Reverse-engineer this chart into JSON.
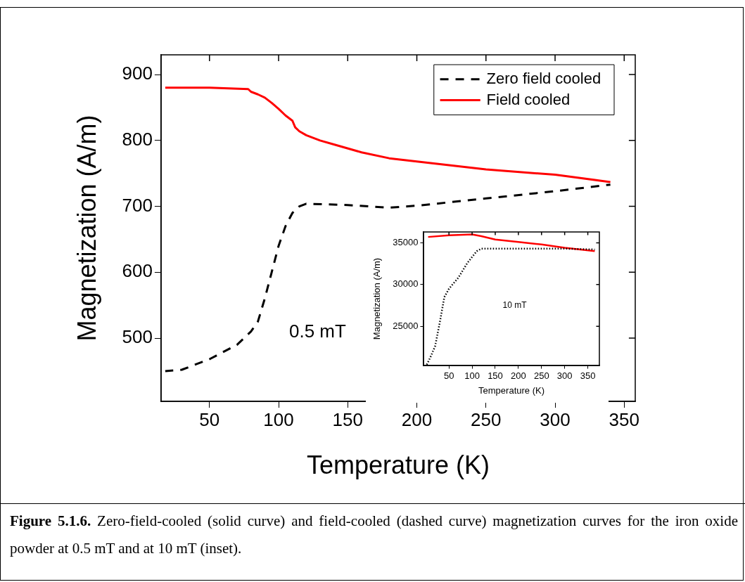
{
  "chart_data": [
    {
      "type": "line",
      "xlabel": "Temperature (K)",
      "ylabel": "Magnetization (A/m)",
      "xlim": [
        15,
        358
      ],
      "ylim": [
        404,
        930
      ],
      "xticks": [
        50,
        100,
        150,
        200,
        250,
        300,
        350
      ],
      "yticks": [
        500,
        600,
        700,
        800,
        900
      ],
      "legend": "top right",
      "series": [
        {
          "name": "Zero field cooled",
          "color": "#000000",
          "line_style": "dashed",
          "x": [
            18,
            30,
            50,
            70,
            80,
            85,
            90,
            95,
            100,
            105,
            110,
            115,
            120,
            150,
            180,
            200,
            250,
            300,
            340
          ],
          "values": [
            450,
            452,
            468,
            490,
            510,
            525,
            560,
            600,
            640,
            670,
            690,
            700,
            704,
            702,
            698,
            701,
            712,
            723,
            733
          ]
        },
        {
          "name": "Field cooled",
          "color": "#ff0000",
          "line_style": "solid",
          "x": [
            18,
            50,
            78,
            80,
            85,
            90,
            95,
            100,
            105,
            110,
            112,
            115,
            120,
            130,
            140,
            160,
            180,
            200,
            250,
            300,
            340
          ],
          "values": [
            880,
            880,
            878,
            874,
            870,
            865,
            857,
            848,
            838,
            830,
            820,
            814,
            808,
            800,
            794,
            782,
            773,
            768,
            756,
            748,
            737
          ]
        }
      ],
      "annotations": [
        "0.5 mT",
        "Figure 5.1.6. Zero-field-cooled (solid curve) and field-cooled (dashed curve) magnetization curves for the iron oxide powder at 0.5 mT and at 10 mT (inset)."
      ]
    },
    {
      "type": "line",
      "xlabel": "Temperature (K)",
      "ylabel": "Magnetization (A/m)",
      "xlim": [
        -5,
        375
      ],
      "ylim": [
        20300,
        36300
      ],
      "xticks": [
        50,
        100,
        150,
        200,
        250,
        300,
        350
      ],
      "yticks": [
        25000,
        30000,
        35000
      ],
      "series": [
        {
          "color": "#000000",
          "line_style": "dotted",
          "x": [
            2,
            10,
            20,
            30,
            40,
            50,
            70,
            90,
            110,
            120,
            150,
            200,
            250,
            300,
            365
          ],
          "values": [
            20400,
            21300,
            22600,
            25400,
            28500,
            29500,
            30800,
            32600,
            34000,
            34300,
            34300,
            34300,
            34300,
            34300,
            34200
          ]
        },
        {
          "color": "#ff0000",
          "line_style": "solid",
          "x": [
            5,
            50,
            100,
            120,
            150,
            200,
            250,
            300,
            365
          ],
          "values": [
            35700,
            35900,
            36000,
            35800,
            35400,
            35100,
            34800,
            34400,
            34000
          ]
        }
      ],
      "annotations": [
        "10 mT"
      ]
    }
  ]
}
